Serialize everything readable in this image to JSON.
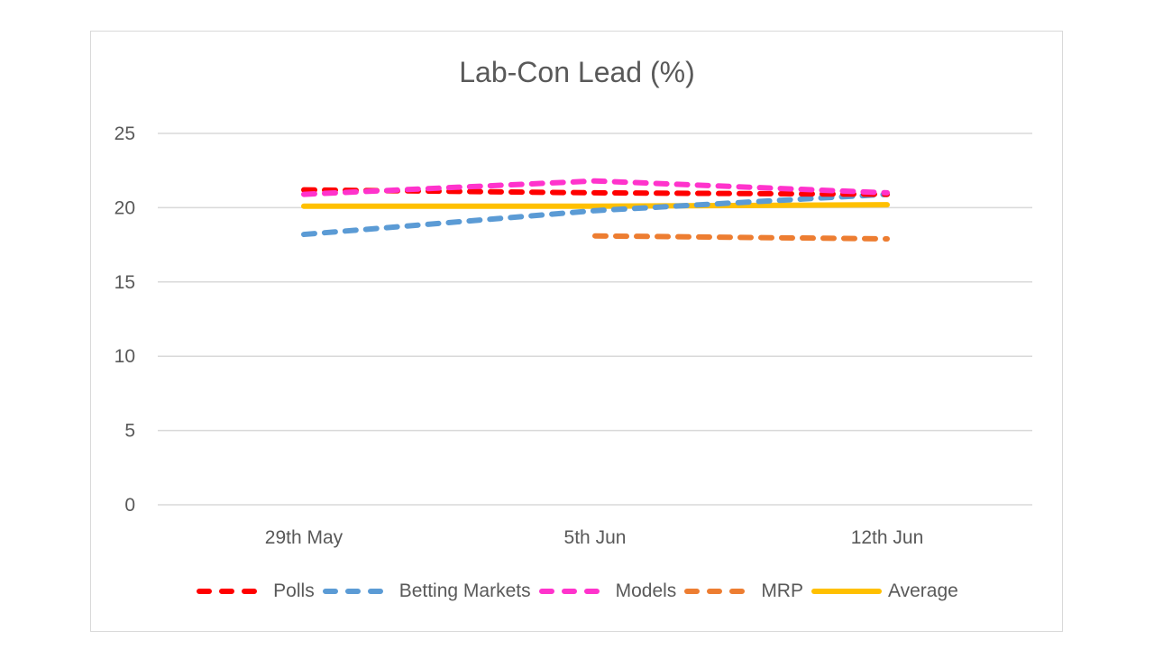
{
  "chart_data": {
    "type": "line",
    "title": "Lab-Con Lead (%)",
    "xlabel": "",
    "ylabel": "",
    "categories": [
      "29th May",
      "5th Jun",
      "12th Jun"
    ],
    "ylim": [
      0,
      25
    ],
    "yticks": [
      0,
      5,
      10,
      15,
      20,
      25
    ],
    "grid": true,
    "legend_position": "bottom",
    "series": [
      {
        "name": "Polls",
        "values": [
          21.2,
          21.0,
          20.9
        ],
        "color": "#FF0000",
        "style": "dashed"
      },
      {
        "name": "Betting Markets",
        "values": [
          18.2,
          19.8,
          20.9
        ],
        "color": "#5B9BD5",
        "style": "dashed"
      },
      {
        "name": "Models",
        "values": [
          20.9,
          21.8,
          21.0
        ],
        "color": "#FF33CC",
        "style": "dashed"
      },
      {
        "name": "MRP",
        "values": [
          null,
          18.1,
          17.9
        ],
        "color": "#ED7D31",
        "style": "dashed"
      },
      {
        "name": "Average",
        "values": [
          20.1,
          20.1,
          20.2
        ],
        "color": "#FFC000",
        "style": "solid"
      }
    ]
  }
}
